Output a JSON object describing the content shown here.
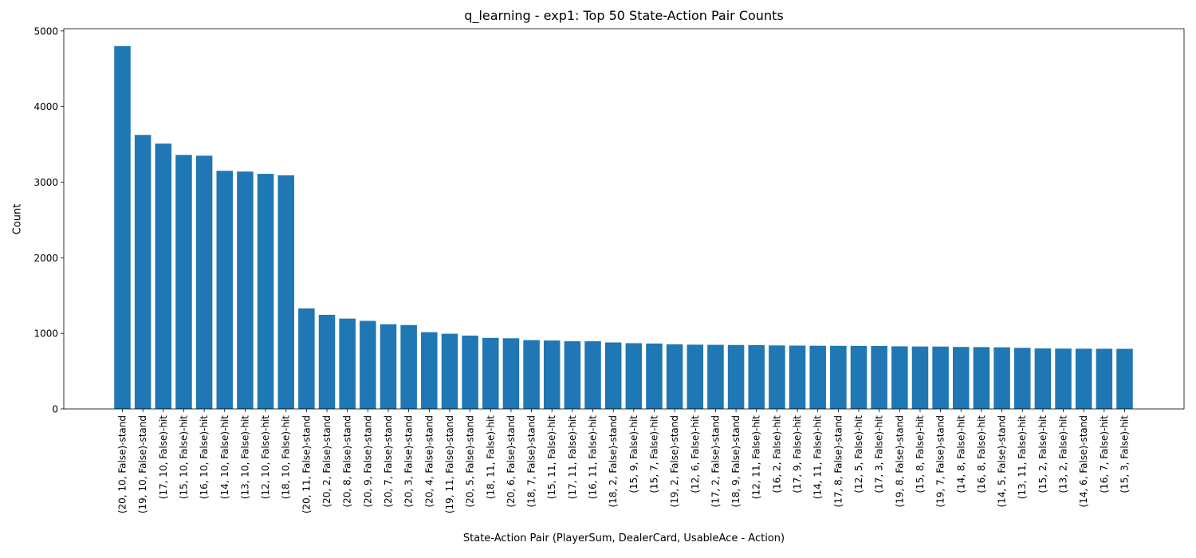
{
  "chart_data": {
    "type": "bar",
    "title": "q_learning - exp1: Top 50 State-Action Pair Counts",
    "xlabel": "State-Action Pair (PlayerSum, DealerCard, UsableAce - Action)",
    "ylabel": "Count",
    "ylim": [
      0,
      5030
    ],
    "yticks": [
      0,
      1000,
      2000,
      3000,
      4000,
      5000
    ],
    "grid": false,
    "colors": {
      "bar": "#1f77b4",
      "axis": "#000000"
    },
    "categories": [
      "(20, 10, False)-stand",
      "(19, 10, False)-stand",
      "(17, 10, False)-hit",
      "(15, 10, False)-hit",
      "(16, 10, False)-hit",
      "(14, 10, False)-hit",
      "(13, 10, False)-hit",
      "(12, 10, False)-hit",
      "(18, 10, False)-hit",
      "(20, 11, False)-stand",
      "(20, 2, False)-stand",
      "(20, 8, False)-stand",
      "(20, 9, False)-stand",
      "(20, 7, False)-stand",
      "(20, 3, False)-stand",
      "(20, 4, False)-stand",
      "(19, 11, False)-stand",
      "(20, 5, False)-stand",
      "(18, 11, False)-hit",
      "(20, 6, False)-stand",
      "(18, 7, False)-stand",
      "(15, 11, False)-hit",
      "(17, 11, False)-hit",
      "(16, 11, False)-hit",
      "(18, 2, False)-stand",
      "(15, 9, False)-hit",
      "(15, 7, False)-hit",
      "(19, 2, False)-stand",
      "(12, 6, False)-hit",
      "(17, 2, False)-stand",
      "(18, 9, False)-stand",
      "(12, 11, False)-hit",
      "(16, 2, False)-hit",
      "(17, 9, False)-hit",
      "(14, 11, False)-hit",
      "(17, 8, False)-stand",
      "(12, 5, False)-hit",
      "(17, 3, False)-hit",
      "(19, 8, False)-stand",
      "(15, 8, False)-hit",
      "(19, 7, False)-stand",
      "(14, 8, False)-hit",
      "(16, 8, False)-hit",
      "(14, 5, False)-stand",
      "(13, 11, False)-hit",
      "(15, 2, False)-hit",
      "(13, 2, False)-hit",
      "(14, 6, False)-stand",
      "(16, 7, False)-hit",
      "(15, 3, False)-hit"
    ],
    "values": [
      4800,
      3625,
      3510,
      3360,
      3350,
      3150,
      3140,
      3110,
      3090,
      1330,
      1245,
      1195,
      1165,
      1120,
      1110,
      1015,
      995,
      970,
      940,
      935,
      910,
      905,
      895,
      895,
      880,
      870,
      865,
      855,
      850,
      848,
      846,
      845,
      840,
      838,
      836,
      835,
      834,
      833,
      828,
      826,
      825,
      820,
      818,
      815,
      808,
      800,
      798,
      797,
      796,
      795
    ]
  }
}
